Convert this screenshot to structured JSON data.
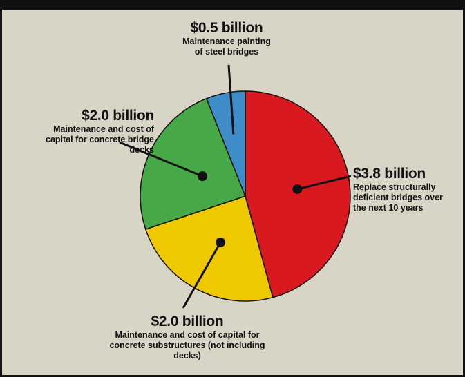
{
  "chart_data": {
    "type": "pie",
    "categories": [
      "Replace structurally deficient bridges over the next 10 years",
      "Maintenance and cost of capital for concrete substructures (not including decks)",
      "Maintenance and cost of capital for concrete bridge decks",
      "Maintenance painting of steel bridges"
    ],
    "values": [
      3.8,
      2.0,
      2.0,
      0.5
    ],
    "value_labels": [
      "$3.8 billion",
      "$2.0 billion",
      "$2.0 billion",
      "$0.5 billion"
    ],
    "colors": [
      "#d8191f",
      "#efc900",
      "#46a846",
      "#3e8dc9"
    ]
  }
}
